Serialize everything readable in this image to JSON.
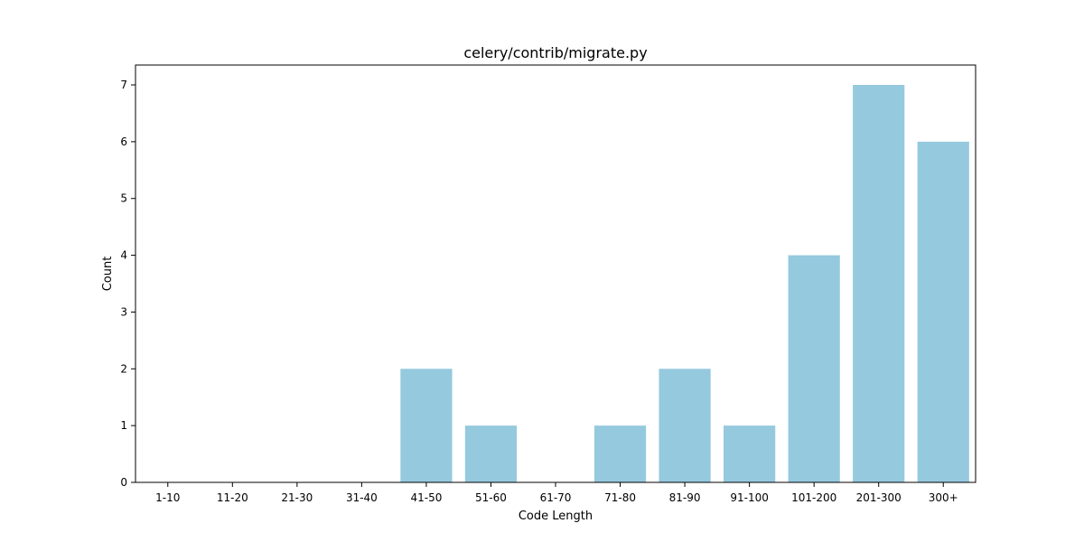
{
  "chart_data": {
    "type": "bar",
    "title": "celery/contrib/migrate.py",
    "xlabel": "Code Length",
    "ylabel": "Count",
    "categories": [
      "1-10",
      "11-20",
      "21-30",
      "31-40",
      "41-50",
      "51-60",
      "61-70",
      "71-80",
      "81-90",
      "91-100",
      "101-200",
      "201-300",
      "300+"
    ],
    "values": [
      0,
      0,
      0,
      0,
      2,
      1,
      0,
      1,
      2,
      1,
      4,
      7,
      6
    ],
    "ylim": [
      0,
      7.35
    ],
    "yticks": [
      0,
      1,
      2,
      3,
      4,
      5,
      6,
      7
    ],
    "grid": false,
    "legend": "none",
    "bar_color": "#95c9de"
  }
}
